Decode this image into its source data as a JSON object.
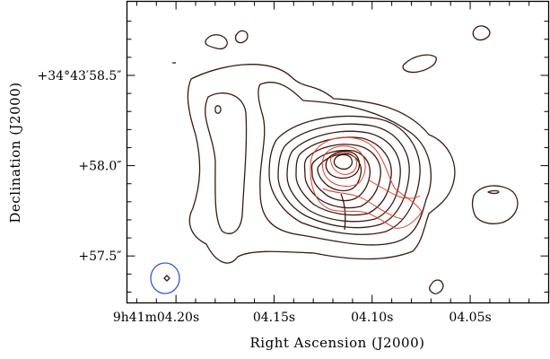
{
  "chart_data": {
    "type": "contour",
    "xlabel": "Right Ascension (J2000)",
    "ylabel": "Declination (J2000)",
    "x_ticks": [
      {
        "value": 4.2,
        "label": "9h41m04.20s"
      },
      {
        "value": 4.15,
        "label": "04.15s"
      },
      {
        "value": 4.1,
        "label": "04.10s"
      },
      {
        "value": 4.05,
        "label": "04.05s"
      }
    ],
    "y_ticks": [
      {
        "value": 58.5,
        "label": "+34°43′58.5″"
      },
      {
        "value": 58.0,
        "label": "+58.0″"
      },
      {
        "value": 57.5,
        "label": "+57.5″"
      }
    ],
    "xlim": [
      4.225,
      4.01
    ],
    "ylim": [
      57.24,
      58.91
    ],
    "series": [
      {
        "color": "#3a1a14"
      },
      {
        "color": "#e0402a"
      }
    ],
    "beam": {
      "color": "#3355dd",
      "ra": 4.2065,
      "dec": 57.37
    }
  }
}
